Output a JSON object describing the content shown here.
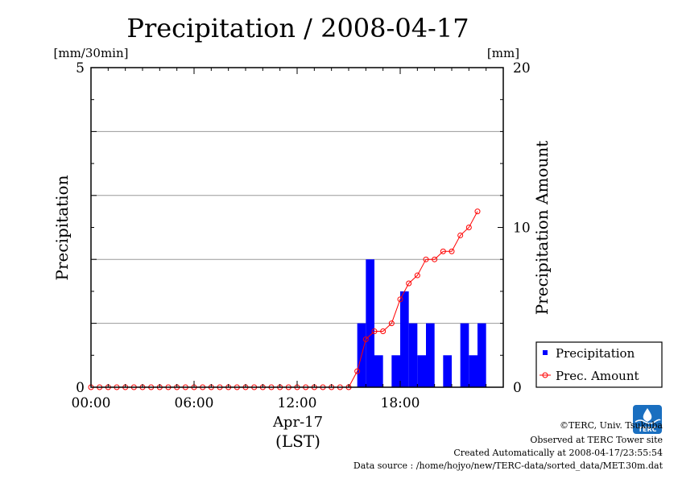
{
  "chart_data": {
    "type": "bar",
    "title": "Precipitation / 2008-04-17",
    "left_unit": "[mm/30min]",
    "right_unit": "[mm]",
    "ylabel": "Precipitation",
    "ylabel_right": "Precipitation Amount",
    "x_tick_labels": [
      "00:00",
      "06:00",
      "12:00",
      "18:00"
    ],
    "x_date_label": "Apr-17",
    "x_timezone_label": "(LST)",
    "ylim": [
      0,
      5
    ],
    "ylim_right": [
      0,
      20
    ],
    "y_tick_labels": [
      "0",
      "5"
    ],
    "y_right_tick_labels": [
      "0",
      "10",
      "20"
    ],
    "grid": true,
    "legend_position": "bottom-right",
    "series": [
      {
        "name": "Precipitation",
        "kind": "bar",
        "color": "#0000ff",
        "axis": "left",
        "values": [
          0,
          0,
          0,
          0,
          0,
          0,
          0,
          0,
          0,
          0,
          0,
          0,
          0,
          0,
          0,
          0,
          0,
          0,
          0,
          0,
          0,
          0,
          0,
          0,
          0,
          0,
          0,
          0,
          0,
          0,
          0,
          1.0,
          2.0,
          0.5,
          0,
          0.5,
          1.5,
          1.0,
          0.5,
          1.0,
          0,
          0.5,
          0,
          1.0,
          0.5,
          1.0
        ]
      },
      {
        "name": "Prec. Amount",
        "kind": "line",
        "color": "#ff0000",
        "axis": "right",
        "values": [
          0,
          0,
          0,
          0,
          0,
          0,
          0,
          0,
          0,
          0,
          0,
          0,
          0,
          0,
          0,
          0,
          0,
          0,
          0,
          0,
          0,
          0,
          0,
          0,
          0,
          0,
          0,
          0,
          0,
          0,
          0,
          1.0,
          3.0,
          3.5,
          3.5,
          4.0,
          5.5,
          6.5,
          7.0,
          8.0,
          8.0,
          8.5,
          8.5,
          9.5,
          10.0,
          11.0
        ]
      }
    ]
  },
  "footer": {
    "copyright": "©TERC, Univ. Tsukuba",
    "observed": "Observed at TERC Tower site",
    "created": "Created Automatically at 2008-04-17/23:55:54",
    "source": "Data source : /home/hojyo/new/TERC-data/sorted_data/MET.30m.dat"
  },
  "logo": {
    "text": "TERC",
    "color": "#1a6fc0"
  }
}
